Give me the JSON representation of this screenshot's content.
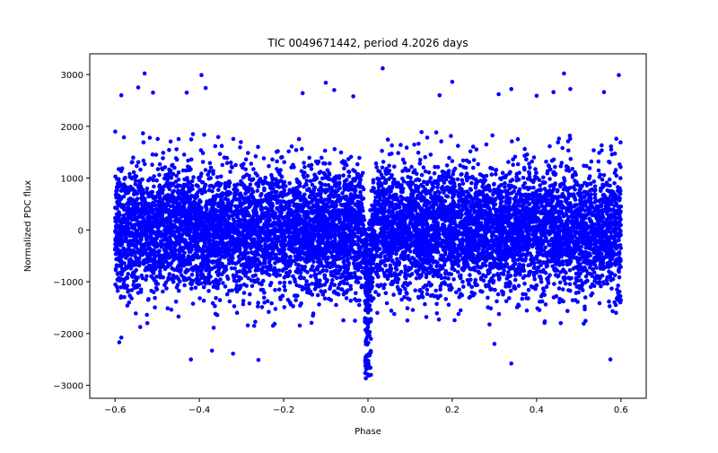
{
  "chart_data": {
    "type": "scatter",
    "title": "TIC 0049671442, period 4.2026 days",
    "xlabel": "Phase",
    "ylabel": "Normalized PDC flux",
    "xlim": [
      -0.66,
      0.66
    ],
    "ylim": [
      -3250,
      3400
    ],
    "xticks": [
      -0.6,
      -0.4,
      -0.2,
      0.0,
      0.2,
      0.4,
      0.6
    ],
    "xtick_labels": [
      "−0.6",
      "−0.4",
      "−0.2",
      "0.0",
      "0.2",
      "0.4",
      "0.6"
    ],
    "yticks": [
      -3000,
      -2000,
      -1000,
      0,
      1000,
      2000,
      3000
    ],
    "ytick_labels": [
      "−3000",
      "−2000",
      "−1000",
      "0",
      "1000",
      "2000",
      "3000"
    ],
    "grid": false,
    "marker_color": "#0000ff",
    "series": [
      {
        "name": "PDC flux",
        "x_range": [
          -0.6,
          0.6
        ],
        "y_median": 0,
        "y_scatter_1sigma": 600,
        "transit_center": 0.0,
        "transit_halfwidth": 0.012,
        "transit_min_flux": -2900,
        "n_points": 9000,
        "outliers": [
          {
            "x": -0.585,
            "y": 2600
          },
          {
            "x": -0.53,
            "y": 3020
          },
          {
            "x": -0.545,
            "y": 2750
          },
          {
            "x": -0.51,
            "y": 2650
          },
          {
            "x": -0.43,
            "y": 2650
          },
          {
            "x": -0.395,
            "y": 2990
          },
          {
            "x": -0.385,
            "y": 2740
          },
          {
            "x": -0.1,
            "y": 2840
          },
          {
            "x": -0.08,
            "y": 2700
          },
          {
            "x": -0.155,
            "y": 2640
          },
          {
            "x": -0.035,
            "y": 2580
          },
          {
            "x": 0.035,
            "y": 3120
          },
          {
            "x": 0.2,
            "y": 2860
          },
          {
            "x": 0.17,
            "y": 2600
          },
          {
            "x": 0.31,
            "y": 2620
          },
          {
            "x": 0.34,
            "y": 2720
          },
          {
            "x": 0.4,
            "y": 2590
          },
          {
            "x": 0.44,
            "y": 2660
          },
          {
            "x": 0.465,
            "y": 3020
          },
          {
            "x": 0.48,
            "y": 2720
          },
          {
            "x": 0.56,
            "y": 2660
          },
          {
            "x": 0.595,
            "y": 2990
          },
          {
            "x": -0.59,
            "y": -2170
          },
          {
            "x": -0.585,
            "y": -2080
          },
          {
            "x": -0.42,
            "y": -2500
          },
          {
            "x": -0.37,
            "y": -2330
          },
          {
            "x": -0.26,
            "y": -2510
          },
          {
            "x": 0.34,
            "y": -2580
          },
          {
            "x": 0.575,
            "y": -2500
          },
          {
            "x": -0.32,
            "y": -2390
          },
          {
            "x": 0.3,
            "y": -2200
          }
        ]
      }
    ]
  }
}
